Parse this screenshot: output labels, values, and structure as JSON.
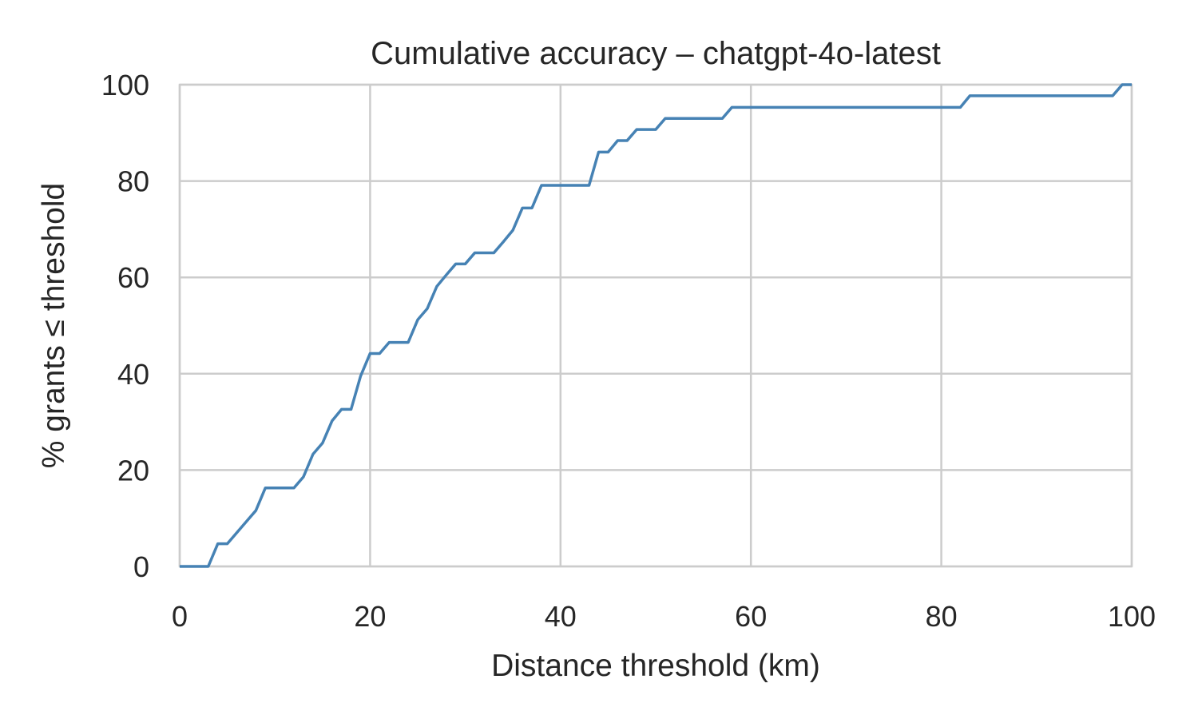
{
  "chart_data": {
    "type": "line",
    "title": "Cumulative accuracy – chatgpt-4o-latest",
    "xlabel": "Distance threshold (km)",
    "ylabel": "% grants ≤ threshold",
    "xlim": [
      0,
      100
    ],
    "ylim": [
      0,
      100
    ],
    "xticks": [
      "0",
      "20",
      "40",
      "60",
      "80",
      "100"
    ],
    "yticks": [
      "0",
      "20",
      "40",
      "60",
      "80",
      "100"
    ],
    "grid": true,
    "line_color": "#4682b4",
    "series": [
      {
        "x": [
          0,
          1,
          2,
          3,
          4,
          5,
          6,
          7,
          8,
          9,
          10,
          11,
          12,
          13,
          14,
          15,
          16,
          17,
          18,
          19,
          20,
          21,
          22,
          23,
          24,
          25,
          26,
          27,
          28,
          29,
          30,
          31,
          32,
          33,
          34,
          35,
          36,
          37,
          38,
          39,
          40,
          41,
          42,
          43,
          44,
          45,
          46,
          47,
          48,
          49,
          50,
          51,
          52,
          53,
          54,
          55,
          56,
          57,
          58,
          82,
          83,
          98,
          99,
          100
        ],
        "y": [
          0,
          0,
          0,
          0,
          4.7,
          4.7,
          7.0,
          9.3,
          11.6,
          16.3,
          16.3,
          16.3,
          16.3,
          18.6,
          23.3,
          25.6,
          30.2,
          32.6,
          32.6,
          39.5,
          44.2,
          44.2,
          46.5,
          46.5,
          46.5,
          51.2,
          53.5,
          58.1,
          60.5,
          62.8,
          62.8,
          65.1,
          65.1,
          65.1,
          67.4,
          69.8,
          74.4,
          74.4,
          79.1,
          79.1,
          79.1,
          79.1,
          79.1,
          79.1,
          86.0,
          86.0,
          88.4,
          88.4,
          90.7,
          90.7,
          90.7,
          93.0,
          93.0,
          93.0,
          93.0,
          93.0,
          93.0,
          93.0,
          95.3,
          95.3,
          97.7,
          97.7,
          100,
          100
        ]
      }
    ]
  }
}
